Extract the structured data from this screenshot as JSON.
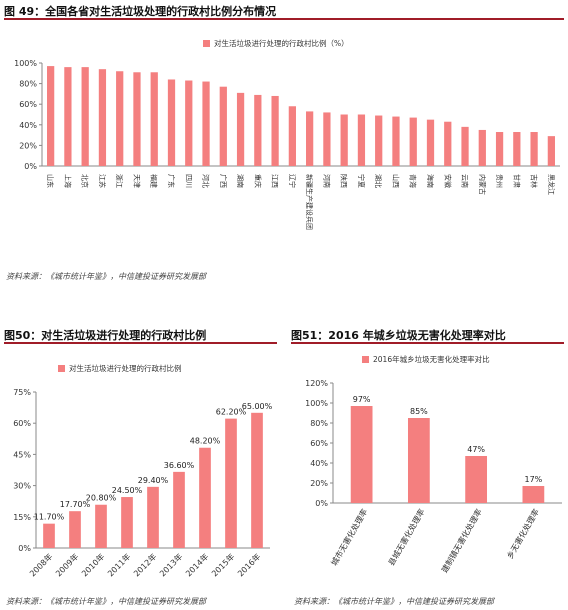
{
  "colors": {
    "bar": "#f47f7f",
    "rule": "#a01c28",
    "axis": "#888888"
  },
  "figure49": {
    "title": "图 49：全国各省对生活垃圾处理的行政村比例分布情况",
    "source": "资料来源：《城市统计年鉴》，中信建投证券研究发展部"
  },
  "figure50": {
    "title": "图50：对生活垃圾进行处理的行政村比例",
    "source": "资料来源：《城市统计年鉴》，中信建投证券研究发展部"
  },
  "figure51": {
    "title": "图51：2016 年城乡垃圾无害化处理率对比",
    "source": "资料来源：《城市统计年鉴》，中信建投证券研究发展部"
  },
  "chart_data": [
    {
      "type": "bar",
      "legend": "对生活垃圾进行处理的行政村比例（%）",
      "legend_position": "top-center",
      "categories": [
        "山东",
        "上海",
        "北京",
        "江苏",
        "浙江",
        "天津",
        "福建",
        "广东",
        "四川",
        "河北",
        "广西",
        "湖南",
        "重庆",
        "江西",
        "辽宁",
        "新疆生产建设兵团",
        "河南",
        "陕西",
        "宁夏",
        "湖北",
        "山西",
        "青海",
        "海南",
        "安徽",
        "云南",
        "内蒙古",
        "贵州",
        "甘肃",
        "吉林",
        "黑龙江"
      ],
      "values": [
        97,
        96,
        96,
        94,
        92,
        91,
        91,
        84,
        83,
        82,
        77,
        71,
        69,
        68,
        58,
        53,
        52,
        50,
        50,
        49,
        48,
        47,
        45,
        43,
        38,
        35,
        33,
        33,
        33,
        29
      ],
      "yticks": [
        "0%",
        "20%",
        "40%",
        "60%",
        "80%",
        "100%"
      ],
      "ylim": [
        0,
        100
      ],
      "grid": false
    },
    {
      "type": "bar",
      "legend": "对生活垃圾进行处理的行政村比例",
      "legend_position": "top-left",
      "categories": [
        "2008年",
        "2009年",
        "2010年",
        "2011年",
        "2012年",
        "2013年",
        "2014年",
        "2015年",
        "2016年"
      ],
      "values": [
        11.7,
        17.7,
        20.8,
        24.5,
        29.4,
        36.6,
        48.2,
        62.2,
        65.0
      ],
      "labels": [
        "11.70%",
        "17.70%",
        "20.80%",
        "24.50%",
        "29.40%",
        "36.60%",
        "48.20%",
        "62.20%",
        "65.00%"
      ],
      "yticks": [
        "0%",
        "15%",
        "30%",
        "45%",
        "60%",
        "75%"
      ],
      "ylim": [
        0,
        75
      ],
      "grid": false
    },
    {
      "type": "bar",
      "legend": "2016年城乡垃圾无害化处理率对比",
      "legend_position": "top-center",
      "categories": [
        "城市无害化处理率",
        "县城无害化处理率",
        "建制镇无害化处理率",
        "乡无害化处理率"
      ],
      "values": [
        97,
        85,
        47,
        17
      ],
      "labels": [
        "97%",
        "85%",
        "47%",
        "17%"
      ],
      "yticks": [
        "0%",
        "20%",
        "40%",
        "60%",
        "80%",
        "100%",
        "120%"
      ],
      "ylim": [
        0,
        120
      ],
      "grid": false
    }
  ]
}
